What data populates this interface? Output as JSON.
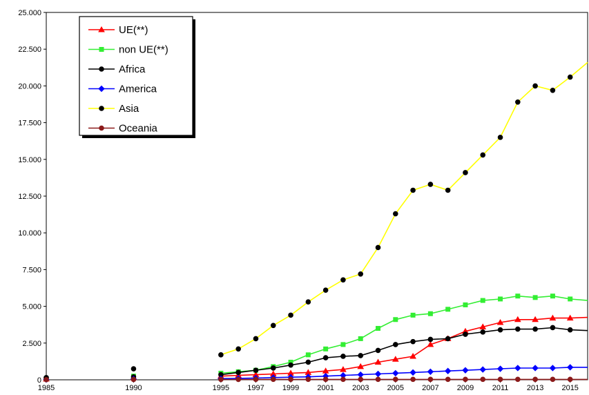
{
  "chart_data": {
    "type": "line",
    "title": "",
    "xlabel": "",
    "ylabel": "",
    "ylim": [
      0,
      25000
    ],
    "xlim": [
      1985,
      2016
    ],
    "y_ticks": [
      "0",
      "2.500",
      "5.000",
      "7.500",
      "10.000",
      "12.500",
      "15.000",
      "17.500",
      "20.000",
      "22.500",
      "25.000"
    ],
    "x_ticks": [
      "1985",
      "1990",
      "1995",
      "1997",
      "1999",
      "2001",
      "2003",
      "2005",
      "2007",
      "2009",
      "2011",
      "2013",
      "2015"
    ],
    "legend_position": "top-left",
    "grid": false,
    "series": [
      {
        "name": "UE(**)",
        "color": "#ff0000",
        "marker": "triangle",
        "points": [
          [
            1985,
            50
          ],
          [
            1990,
            150
          ],
          [
            1995,
            250
          ],
          [
            1996,
            300
          ],
          [
            1997,
            350
          ],
          [
            1998,
            400
          ],
          [
            1999,
            450
          ],
          [
            2000,
            500
          ],
          [
            2001,
            600
          ],
          [
            2002,
            700
          ],
          [
            2003,
            900
          ],
          [
            2004,
            1200
          ],
          [
            2005,
            1400
          ],
          [
            2006,
            1600
          ],
          [
            2007,
            2400
          ],
          [
            2008,
            2800
          ],
          [
            2009,
            3300
          ],
          [
            2010,
            3600
          ],
          [
            2011,
            3900
          ],
          [
            2012,
            4100
          ],
          [
            2013,
            4100
          ],
          [
            2014,
            4200
          ],
          [
            2015,
            4200
          ],
          [
            2016,
            4250
          ]
        ]
      },
      {
        "name": "non UE(**)",
        "color": "#33ee33",
        "marker": "square",
        "points": [
          [
            1985,
            80
          ],
          [
            1990,
            250
          ],
          [
            1995,
            450
          ],
          [
            1996,
            550
          ],
          [
            1997,
            650
          ],
          [
            1998,
            900
          ],
          [
            1999,
            1200
          ],
          [
            2000,
            1700
          ],
          [
            2001,
            2100
          ],
          [
            2002,
            2400
          ],
          [
            2003,
            2800
          ],
          [
            2004,
            3500
          ],
          [
            2005,
            4100
          ],
          [
            2006,
            4400
          ],
          [
            2007,
            4500
          ],
          [
            2008,
            4800
          ],
          [
            2009,
            5100
          ],
          [
            2010,
            5400
          ],
          [
            2011,
            5500
          ],
          [
            2012,
            5700
          ],
          [
            2013,
            5600
          ],
          [
            2014,
            5700
          ],
          [
            2015,
            5500
          ],
          [
            2016,
            5400
          ]
        ]
      },
      {
        "name": "Africa",
        "color": "#000000",
        "marker": "circle",
        "points": [
          [
            1985,
            100
          ],
          [
            1990,
            200
          ],
          [
            1995,
            350
          ],
          [
            1996,
            500
          ],
          [
            1997,
            650
          ],
          [
            1998,
            800
          ],
          [
            1999,
            1000
          ],
          [
            2000,
            1200
          ],
          [
            2001,
            1500
          ],
          [
            2002,
            1600
          ],
          [
            2003,
            1650
          ],
          [
            2004,
            2000
          ],
          [
            2005,
            2400
          ],
          [
            2006,
            2600
          ],
          [
            2007,
            2750
          ],
          [
            2008,
            2800
          ],
          [
            2009,
            3100
          ],
          [
            2010,
            3250
          ],
          [
            2011,
            3400
          ],
          [
            2012,
            3450
          ],
          [
            2013,
            3450
          ],
          [
            2014,
            3550
          ],
          [
            2015,
            3400
          ],
          [
            2016,
            3350
          ]
        ]
      },
      {
        "name": "America",
        "color": "#0000ff",
        "marker": "diamond",
        "points": [
          [
            1985,
            20
          ],
          [
            1990,
            50
          ],
          [
            1995,
            80
          ],
          [
            1996,
            100
          ],
          [
            1997,
            120
          ],
          [
            1998,
            150
          ],
          [
            1999,
            180
          ],
          [
            2000,
            200
          ],
          [
            2001,
            250
          ],
          [
            2002,
            300
          ],
          [
            2003,
            350
          ],
          [
            2004,
            400
          ],
          [
            2005,
            450
          ],
          [
            2006,
            500
          ],
          [
            2007,
            550
          ],
          [
            2008,
            600
          ],
          [
            2009,
            650
          ],
          [
            2010,
            700
          ],
          [
            2011,
            750
          ],
          [
            2012,
            800
          ],
          [
            2013,
            800
          ],
          [
            2014,
            800
          ],
          [
            2015,
            850
          ],
          [
            2016,
            850
          ]
        ]
      },
      {
        "name": "Asia",
        "color": "#ffff00",
        "marker": "circle",
        "points": [
          [
            1985,
            150
          ],
          [
            1990,
            750
          ],
          [
            1995,
            1700
          ],
          [
            1996,
            2100
          ],
          [
            1997,
            2800
          ],
          [
            1998,
            3700
          ],
          [
            1999,
            4400
          ],
          [
            2000,
            5300
          ],
          [
            2001,
            6100
          ],
          [
            2002,
            6800
          ],
          [
            2003,
            7200
          ],
          [
            2004,
            9000
          ],
          [
            2005,
            11300
          ],
          [
            2006,
            12900
          ],
          [
            2007,
            13300
          ],
          [
            2008,
            12900
          ],
          [
            2009,
            14100
          ],
          [
            2010,
            15300
          ],
          [
            2011,
            16500
          ],
          [
            2012,
            18900
          ],
          [
            2013,
            20000
          ],
          [
            2014,
            19700
          ],
          [
            2015,
            20600
          ],
          [
            2016,
            21600
          ]
        ]
      },
      {
        "name": "Oceania",
        "color": "#8b1a1a",
        "marker": "circle",
        "points": [
          [
            1985,
            10
          ],
          [
            1990,
            20
          ],
          [
            1995,
            25
          ],
          [
            1996,
            25
          ],
          [
            1997,
            30
          ],
          [
            1998,
            30
          ],
          [
            1999,
            30
          ],
          [
            2000,
            30
          ],
          [
            2001,
            30
          ],
          [
            2002,
            30
          ],
          [
            2003,
            30
          ],
          [
            2004,
            30
          ],
          [
            2005,
            30
          ],
          [
            2006,
            30
          ],
          [
            2007,
            30
          ],
          [
            2008,
            30
          ],
          [
            2009,
            30
          ],
          [
            2010,
            30
          ],
          [
            2011,
            30
          ],
          [
            2012,
            30
          ],
          [
            2013,
            30
          ],
          [
            2014,
            30
          ],
          [
            2015,
            30
          ],
          [
            2016,
            30
          ]
        ]
      }
    ]
  }
}
